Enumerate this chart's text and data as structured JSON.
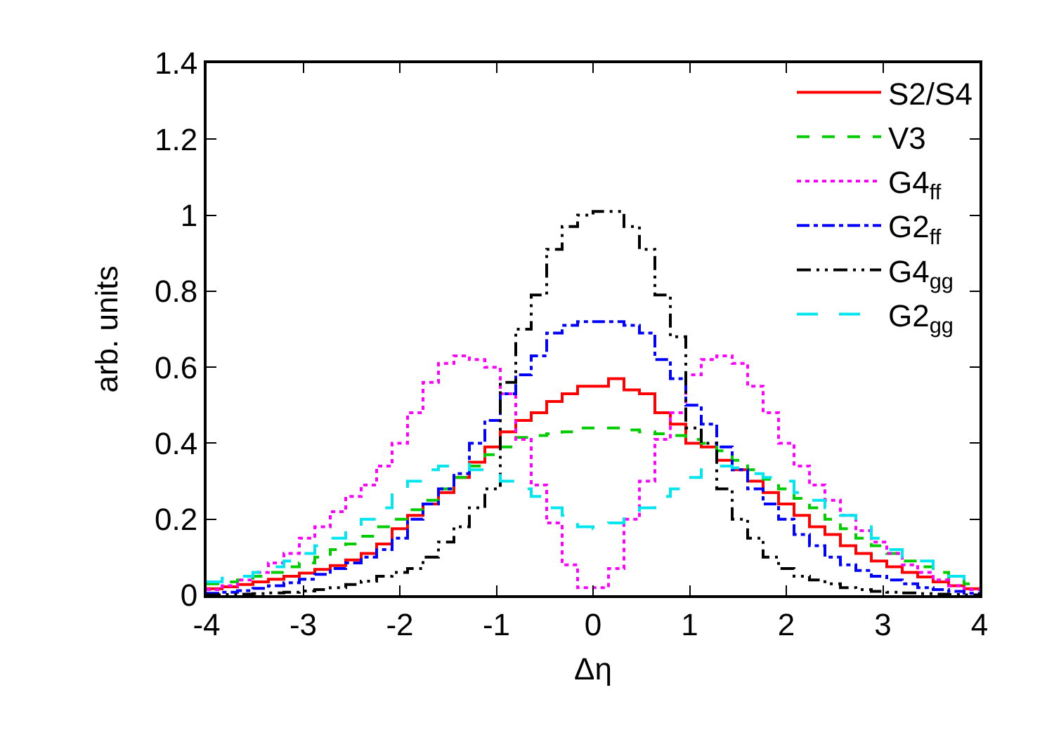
{
  "chart_data": {
    "type": "histogram",
    "xlabel": "Δη",
    "ylabel": "arb. units",
    "bins": [
      -4,
      -3.84,
      -3.68,
      -3.52,
      -3.36,
      -3.2,
      -3.04,
      -2.88,
      -2.72,
      -2.56,
      -2.4,
      -2.24,
      -2.08,
      -1.92,
      -1.76,
      -1.6,
      -1.44,
      -1.28,
      -1.12,
      -0.96,
      -0.8,
      -0.64,
      -0.48,
      -0.32,
      -0.16,
      0,
      0.16,
      0.32,
      0.48,
      0.64,
      0.8,
      0.96,
      1.12,
      1.28,
      1.44,
      1.6,
      1.76,
      1.92,
      2.08,
      2.24,
      2.4,
      2.56,
      2.72,
      2.88,
      3.04,
      3.2,
      3.36,
      3.52,
      3.68,
      3.84,
      4
    ],
    "series": [
      {
        "name": "S2/S4",
        "color": "#ff0000",
        "line_style": "solid",
        "values": [
          0.017,
          0.022,
          0.028,
          0.035,
          0.042,
          0.05,
          0.058,
          0.068,
          0.078,
          0.093,
          0.11,
          0.135,
          0.175,
          0.21,
          0.24,
          0.27,
          0.31,
          0.35,
          0.39,
          0.43,
          0.46,
          0.48,
          0.51,
          0.53,
          0.55,
          0.55,
          0.57,
          0.54,
          0.53,
          0.48,
          0.45,
          0.4,
          0.39,
          0.355,
          0.33,
          0.3,
          0.27,
          0.24,
          0.21,
          0.18,
          0.16,
          0.13,
          0.11,
          0.09,
          0.075,
          0.06,
          0.048,
          0.035,
          0.025,
          0.017
        ]
      },
      {
        "name": "V3",
        "color": "#00cc00",
        "line_style": "dashed",
        "values": [
          0.03,
          0.035,
          0.04,
          0.05,
          0.06,
          0.075,
          0.085,
          0.1,
          0.12,
          0.135,
          0.155,
          0.18,
          0.2,
          0.225,
          0.25,
          0.28,
          0.31,
          0.34,
          0.37,
          0.39,
          0.415,
          0.42,
          0.425,
          0.43,
          0.44,
          0.44,
          0.44,
          0.435,
          0.43,
          0.425,
          0.42,
          0.41,
          0.4,
          0.38,
          0.355,
          0.33,
          0.305,
          0.28,
          0.255,
          0.23,
          0.2,
          0.175,
          0.15,
          0.13,
          0.11,
          0.09,
          0.075,
          0.06,
          0.045,
          0.03
        ]
      },
      {
        "name": "G4$_{ff}$",
        "color": "#ff00ff",
        "line_style": "dotted",
        "values": [
          0.015,
          0.025,
          0.04,
          0.06,
          0.085,
          0.11,
          0.15,
          0.18,
          0.22,
          0.26,
          0.29,
          0.34,
          0.4,
          0.48,
          0.56,
          0.61,
          0.63,
          0.62,
          0.6,
          0.53,
          0.41,
          0.29,
          0.19,
          0.08,
          0.02,
          0.02,
          0.07,
          0.2,
          0.3,
          0.41,
          0.48,
          0.58,
          0.62,
          0.63,
          0.61,
          0.55,
          0.48,
          0.4,
          0.34,
          0.29,
          0.25,
          0.21,
          0.17,
          0.14,
          0.11,
          0.08,
          0.06,
          0.04,
          0.025,
          0.015
        ]
      },
      {
        "name": "G2$_{ff}$",
        "color": "#0000ff",
        "line_style": "dashdot",
        "values": [
          0.005,
          0.008,
          0.012,
          0.018,
          0.025,
          0.033,
          0.042,
          0.055,
          0.07,
          0.085,
          0.1,
          0.12,
          0.15,
          0.2,
          0.24,
          0.28,
          0.32,
          0.4,
          0.46,
          0.53,
          0.58,
          0.63,
          0.69,
          0.71,
          0.72,
          0.72,
          0.72,
          0.71,
          0.69,
          0.62,
          0.57,
          0.5,
          0.45,
          0.39,
          0.33,
          0.28,
          0.24,
          0.2,
          0.16,
          0.13,
          0.1,
          0.08,
          0.065,
          0.05,
          0.04,
          0.03,
          0.02,
          0.015,
          0.01,
          0.005
        ]
      },
      {
        "name": "G4$_{gg}$",
        "color": "#000000",
        "line_style": "dashdotdot",
        "values": [
          0.001,
          0.002,
          0.003,
          0.004,
          0.006,
          0.008,
          0.011,
          0.015,
          0.02,
          0.028,
          0.037,
          0.05,
          0.06,
          0.07,
          0.1,
          0.14,
          0.18,
          0.23,
          0.28,
          0.56,
          0.7,
          0.79,
          0.91,
          0.97,
          1,
          1.01,
          1.01,
          0.97,
          0.91,
          0.79,
          0.68,
          0.44,
          0.4,
          0.28,
          0.2,
          0.15,
          0.1,
          0.07,
          0.05,
          0.04,
          0.03,
          0.02,
          0.015,
          0.01,
          0.008,
          0.006,
          0.004,
          0.003,
          0.002,
          0.001
        ]
      },
      {
        "name": "G2$_{gg}$",
        "color": "#00e5ee",
        "line_style": "longdash",
        "values": [
          0.035,
          0.045,
          0.05,
          0.06,
          0.075,
          0.09,
          0.11,
          0.13,
          0.15,
          0.18,
          0.2,
          0.23,
          0.27,
          0.3,
          0.33,
          0.34,
          0.345,
          0.33,
          0.32,
          0.3,
          0.28,
          0.26,
          0.23,
          0.21,
          0.18,
          0.175,
          0.19,
          0.21,
          0.23,
          0.26,
          0.28,
          0.31,
          0.33,
          0.34,
          0.335,
          0.32,
          0.31,
          0.3,
          0.27,
          0.25,
          0.23,
          0.21,
          0.18,
          0.15,
          0.12,
          0.1,
          0.09,
          0.07,
          0.05,
          0.035
        ]
      }
    ],
    "xlim": [
      -4,
      4
    ],
    "xticks": [
      -4,
      -3,
      -2,
      -1,
      0,
      1,
      2,
      3,
      4
    ],
    "ylim": [
      0,
      1.4
    ],
    "yticks": [
      0,
      0.2,
      0.4,
      0.6,
      0.8,
      1,
      1.2,
      1.4
    ],
    "grid": false,
    "legend": "top right"
  }
}
